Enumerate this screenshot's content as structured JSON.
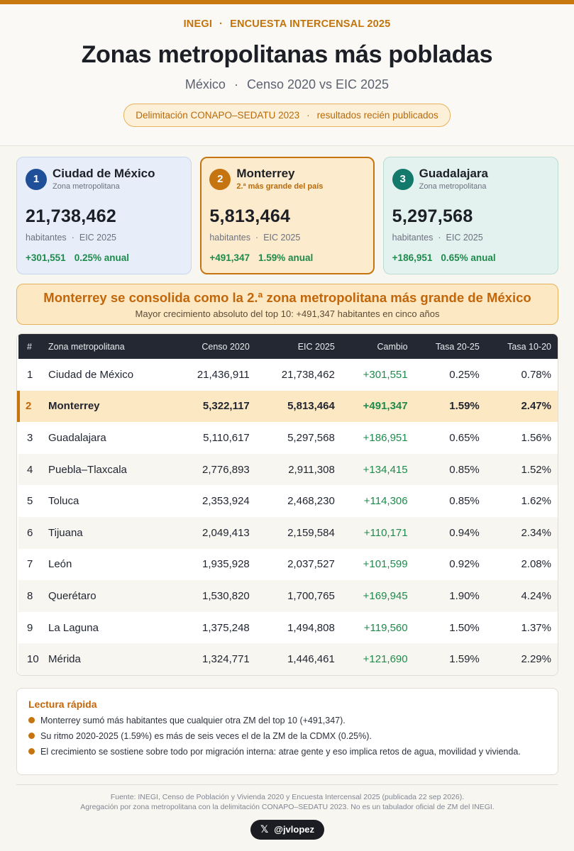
{
  "header": {
    "kicker_source": "INEGI",
    "kicker_survey": "ENCUESTA INTERCENSAL 2025",
    "title": "Zonas metropolitanas más pobladas",
    "subtitle_country": "México",
    "subtitle_compare": "Censo 2020 vs EIC 2025",
    "pill_left": "Delimitación CONAPO–SEDATU 2023",
    "pill_right": "resultados recién publicados"
  },
  "cards": [
    {
      "rank": "1",
      "name": "Ciudad de México",
      "tag": "Zona metropolitana",
      "population": "21,738,462",
      "unit": "habitantes",
      "source": "EIC 2025",
      "change": "+301,551",
      "rate": "0.25% anual"
    },
    {
      "rank": "2",
      "name": "Monterrey",
      "tag": "2.ª más grande del país",
      "population": "5,813,464",
      "unit": "habitantes",
      "source": "EIC 2025",
      "change": "+491,347",
      "rate": "1.59% anual"
    },
    {
      "rank": "3",
      "name": "Guadalajara",
      "tag": "Zona metropolitana",
      "population": "5,297,568",
      "unit": "habitantes",
      "source": "EIC 2025",
      "change": "+186,951",
      "rate": "0.65% anual"
    }
  ],
  "banner": {
    "title": "Monterrey se consolida como la 2.ª zona metropolitana más grande de México",
    "subtitle": "Mayor crecimiento absoluto del top 10: +491,347 habitantes en cinco años"
  },
  "table": {
    "headers": [
      "#",
      "Zona metropolitana",
      "Censo 2020",
      "EIC 2025",
      "Cambio",
      "Tasa 20-25",
      "Tasa 10-20"
    ],
    "rows": [
      [
        "1",
        "Ciudad de México",
        "21,436,911",
        "21,738,462",
        "+301,551",
        "0.25%",
        "0.78%"
      ],
      [
        "2",
        "Monterrey",
        "5,322,117",
        "5,813,464",
        "+491,347",
        "1.59%",
        "2.47%"
      ],
      [
        "3",
        "Guadalajara",
        "5,110,617",
        "5,297,568",
        "+186,951",
        "0.65%",
        "1.56%"
      ],
      [
        "4",
        "Puebla–Tlaxcala",
        "2,776,893",
        "2,911,308",
        "+134,415",
        "0.85%",
        "1.52%"
      ],
      [
        "5",
        "Toluca",
        "2,353,924",
        "2,468,230",
        "+114,306",
        "0.85%",
        "1.62%"
      ],
      [
        "6",
        "Tijuana",
        "2,049,413",
        "2,159,584",
        "+110,171",
        "0.94%",
        "2.34%"
      ],
      [
        "7",
        "León",
        "1,935,928",
        "2,037,527",
        "+101,599",
        "0.92%",
        "2.08%"
      ],
      [
        "8",
        "Querétaro",
        "1,530,820",
        "1,700,765",
        "+169,945",
        "1.90%",
        "4.24%"
      ],
      [
        "9",
        "La Laguna",
        "1,375,248",
        "1,494,808",
        "+119,560",
        "1.50%",
        "1.37%"
      ],
      [
        "10",
        "Mérida",
        "1,324,771",
        "1,446,461",
        "+121,690",
        "1.59%",
        "2.29%"
      ]
    ]
  },
  "notes": {
    "title": "Lectura rápida",
    "items": [
      "Monterrey sumó más habitantes que cualquier otra ZM del top 10 (+491,347).",
      "Su ritmo 2020-2025 (1.59%) es más de seis veces el de la ZM de la CDMX (0.25%).",
      "El crecimiento se sostiene sobre todo por migración interna: atrae gente y eso implica retos de agua, movilidad y vivienda."
    ]
  },
  "footer": {
    "source_line1": "Fuente: INEGI, Censo de Población y Vivienda 2020 y Encuesta Intercensal 2025 (publicada 22 sep 2026).",
    "source_line2": "Agregación por zona metropolitana con la delimitación CONAPO–SEDATU 2023. No es un tabulador oficial de ZM del INEGI.",
    "x_icon": "x-logo-icon",
    "handle": "@jvlopez"
  },
  "colors": {
    "accent": "#c6740f",
    "positive": "#1e8a4c",
    "header_dark": "#232833",
    "card1": "#1f4f98",
    "card3": "#137a6b"
  }
}
